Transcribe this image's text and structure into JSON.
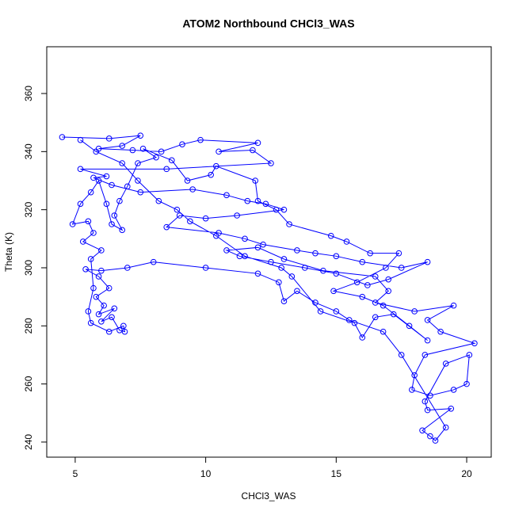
{
  "chart_data": {
    "type": "line",
    "title": "ATOM2 Northbound CHCl3_WAS",
    "x_label": "CHCl3_WAS",
    "y_label": "Theta (K)",
    "color": "#0000ff",
    "xlim": [
      3.91,
      20.94
    ],
    "ylim": [
      234.8,
      376.1
    ],
    "xticks": [
      5,
      10,
      15,
      20
    ],
    "yticks": [
      240,
      260,
      280,
      300,
      320,
      340,
      360
    ],
    "x": [
      4.5,
      6.3,
      7.5,
      6.8,
      5.9,
      7.2,
      8.3,
      9.1,
      9.8,
      12,
      10.5,
      11.8,
      12.5,
      8.5,
      5.2,
      6.2,
      5.7,
      6.4,
      7.5,
      9.5,
      10.8,
      11.6,
      12.3,
      13,
      11.2,
      10,
      9,
      8.5,
      10.5,
      11.5,
      12.2,
      13.5,
      14.2,
      15,
      16,
      17.5,
      18.5,
      17,
      16.2,
      15,
      13.8,
      12.5,
      11.3,
      10.8,
      12,
      13,
      14.5,
      16.5,
      17,
      16.5,
      18,
      19.5,
      18.5,
      19,
      20.3,
      18.4,
      18,
      17.9,
      18.6,
      19.5,
      20,
      20.1,
      19.2,
      18.4,
      18.5,
      19.4,
      18.3,
      18.6,
      18.8,
      19.2,
      17.5,
      16.8,
      15.5,
      15,
      14.2,
      13.5,
      13,
      12.8,
      12,
      10,
      8,
      7,
      6,
      5.4,
      5.9,
      6.3,
      5.8,
      6.1,
      5.9,
      6.5,
      6,
      6.4,
      6.7,
      6.9,
      6.85,
      6.3,
      5.6,
      5.5,
      5.7,
      5.6,
      6,
      5.3,
      5.7,
      5.5,
      4.9,
      5.2,
      5.6,
      5.9,
      6.2,
      6.4,
      6.8,
      6.5,
      6.7,
      7,
      7.4,
      8.1,
      7.6,
      8.7,
      9.3,
      10.2,
      10.4,
      11.9,
      12,
      12.7,
      13.2,
      14.8,
      15.4,
      16.3,
      17.4,
      16.9,
      15.8,
      14.9,
      16,
      16.8,
      17.8,
      18.5,
      17.2,
      16.5,
      16,
      15.7,
      14.4,
      13.3,
      12.9,
      11.5,
      10.4,
      9.4,
      8.9,
      8.2,
      7.4,
      6.8,
      5.8,
      5.2
    ],
    "values": [
      345,
      344.5,
      345.5,
      342,
      341,
      340.5,
      340,
      342.5,
      344,
      343,
      340,
      340.5,
      336,
      334,
      334,
      331.5,
      331,
      328.5,
      326,
      327,
      325,
      323,
      322,
      320,
      318,
      317,
      318,
      314,
      312,
      310,
      308,
      306,
      305,
      304,
      302,
      300,
      302,
      296,
      294,
      298,
      300,
      302,
      304,
      306,
      307,
      303,
      299,
      297,
      292,
      288,
      285,
      287,
      282,
      278,
      274,
      270,
      263,
      258,
      256,
      258,
      260,
      270,
      267,
      254,
      251,
      251.5,
      244,
      242,
      240.5,
      245,
      270,
      278,
      282,
      285,
      288,
      292,
      288.5,
      295,
      298,
      300,
      302,
      300,
      299,
      299.5,
      297,
      293,
      290,
      287,
      284,
      286,
      281.5,
      283,
      278.5,
      278,
      280,
      278,
      281,
      285,
      293,
      303,
      306,
      309,
      312,
      316,
      315,
      322,
      326,
      330,
      322,
      315,
      313,
      318,
      323,
      328,
      336,
      338,
      341,
      337,
      330,
      332,
      335,
      330,
      323,
      320,
      315,
      311,
      309,
      305,
      305,
      300,
      295,
      292,
      290,
      287,
      280,
      275,
      284,
      283,
      276,
      281,
      285,
      297,
      300,
      304,
      311,
      316,
      320,
      323,
      330,
      336,
      340,
      344
    ]
  }
}
